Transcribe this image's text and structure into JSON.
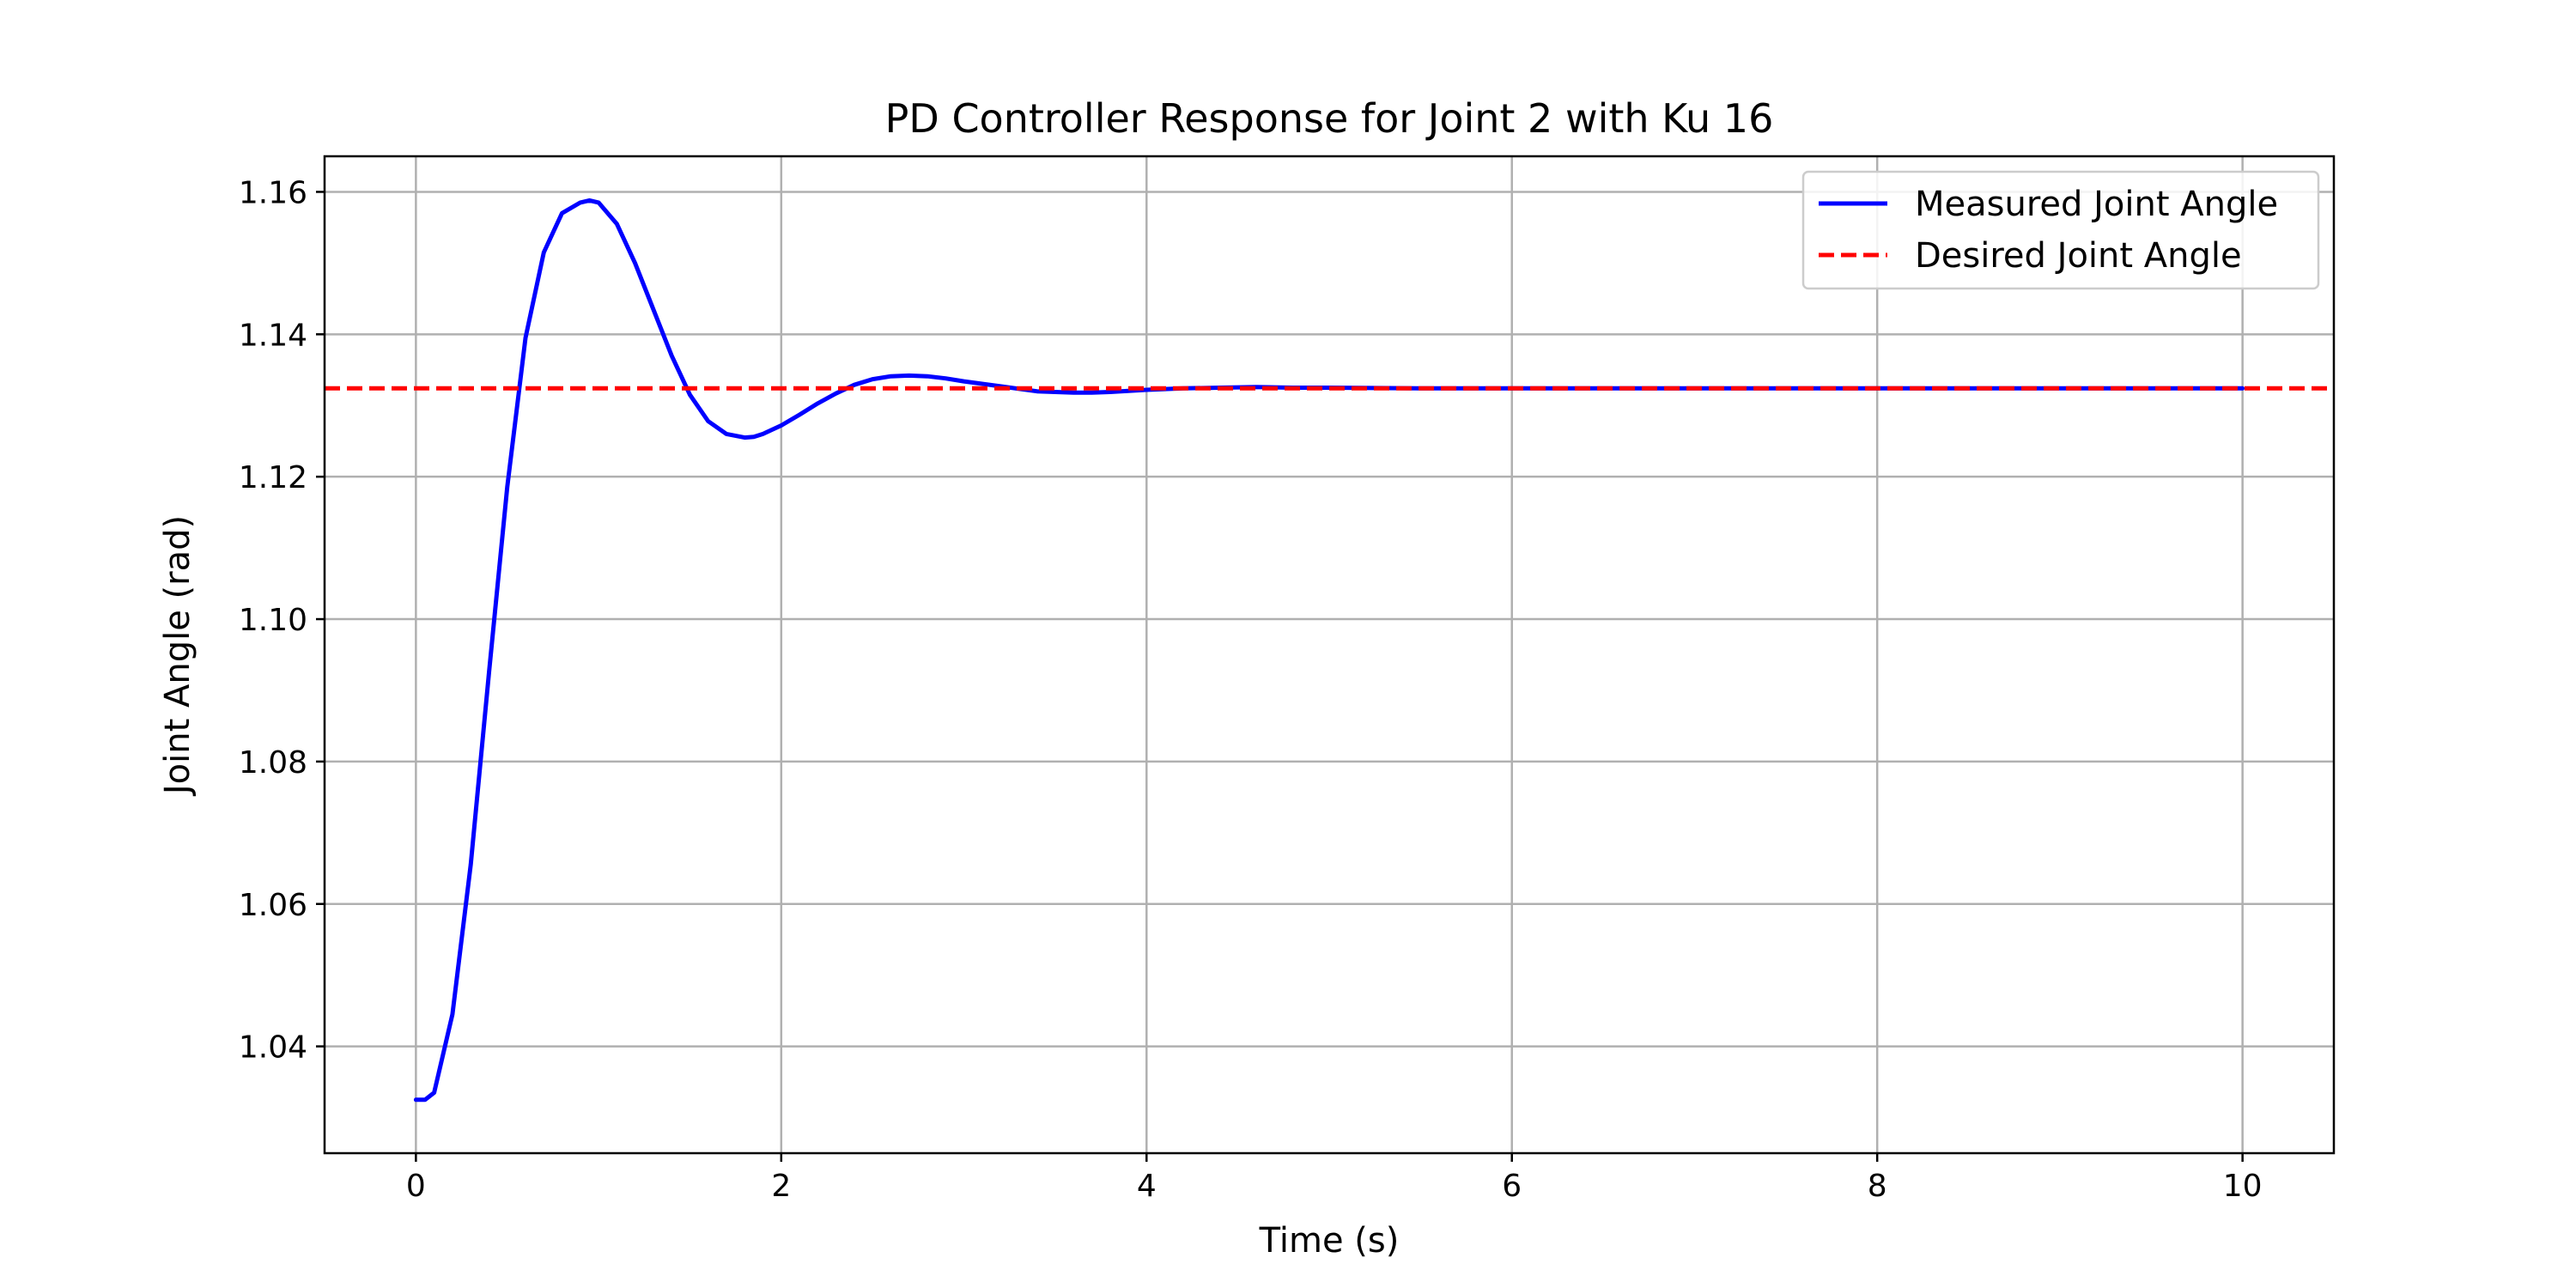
{
  "chart_data": {
    "type": "line",
    "title": "PD Controller Response for Joint 2 with Ku 16",
    "xlabel": "Time (s)",
    "ylabel": "Joint Angle (rad)",
    "xlim": [
      -0.5,
      10.5
    ],
    "ylim": [
      1.025,
      1.165
    ],
    "xticks": [
      0,
      2,
      4,
      6,
      8,
      10
    ],
    "yticks": [
      1.04,
      1.06,
      1.08,
      1.1,
      1.12,
      1.14,
      1.16
    ],
    "xtick_labels": [
      "0",
      "2",
      "4",
      "6",
      "8",
      "10"
    ],
    "ytick_labels": [
      "1.04",
      "1.06",
      "1.08",
      "1.10",
      "1.12",
      "1.14",
      "1.16"
    ],
    "grid": true,
    "legend_position": "top-right",
    "series": [
      {
        "name": "Measured Joint Angle",
        "color": "#0000ff",
        "style": "solid",
        "x": [
          0,
          0.05,
          0.1,
          0.2,
          0.3,
          0.4,
          0.5,
          0.6,
          0.7,
          0.8,
          0.9,
          0.95,
          1.0,
          1.1,
          1.2,
          1.3,
          1.4,
          1.5,
          1.6,
          1.7,
          1.8,
          1.85,
          1.9,
          2.0,
          2.1,
          2.2,
          2.3,
          2.4,
          2.5,
          2.6,
          2.7,
          2.8,
          2.9,
          3.0,
          3.2,
          3.4,
          3.6,
          3.7,
          3.8,
          4.0,
          4.2,
          4.4,
          4.6,
          4.8,
          5.0,
          5.5,
          6.0,
          7.0,
          8.0,
          9.0,
          10.0
        ],
        "y": [
          1.0325,
          1.0325,
          1.0335,
          1.0445,
          1.0655,
          1.0925,
          1.1185,
          1.1395,
          1.1515,
          1.157,
          1.1585,
          1.1588,
          1.1585,
          1.1555,
          1.15,
          1.1435,
          1.137,
          1.1315,
          1.1278,
          1.126,
          1.1255,
          1.1256,
          1.126,
          1.1272,
          1.1287,
          1.1303,
          1.1317,
          1.1329,
          1.1337,
          1.1341,
          1.1342,
          1.1341,
          1.1338,
          1.1334,
          1.1327,
          1.132,
          1.1318,
          1.1318,
          1.1319,
          1.1322,
          1.1324,
          1.1325,
          1.1326,
          1.1325,
          1.1325,
          1.1324,
          1.1324,
          1.1324,
          1.1324,
          1.1324,
          1.1324
        ]
      },
      {
        "name": "Desired Joint Angle",
        "color": "#ff0000",
        "style": "dashed",
        "x": [
          -0.5,
          10.5
        ],
        "y": [
          1.1324,
          1.1324
        ]
      }
    ]
  }
}
